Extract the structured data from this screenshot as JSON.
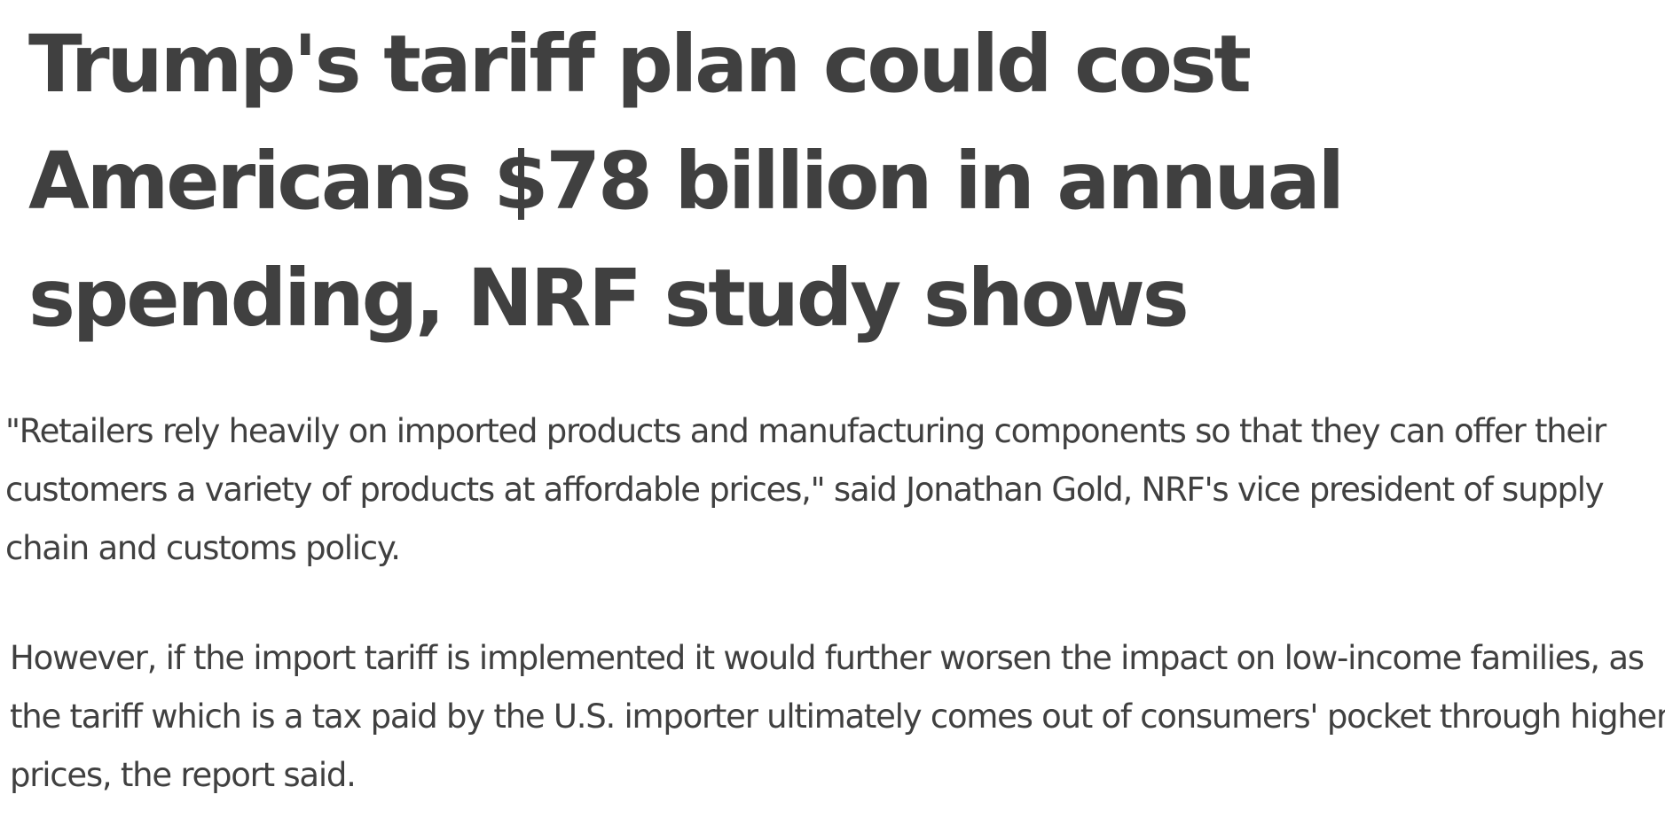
{
  "article": {
    "headline": "Trump's tariff plan could cost Americans $78 billion in annual spending, NRF study shows",
    "paragraphs": [
      "\"Retailers rely heavily on imported products and manufacturing components so that they can offer their customers a variety of products at affordable prices,\" said Jonathan Gold, NRF's vice president of supply chain and customs policy.",
      "However, if the import tariff is implemented it would further worsen the impact on low-income families, as the tariff which is a tax paid by the U.S. importer ultimately comes out of consumers' pocket through higher prices, the report said."
    ]
  }
}
